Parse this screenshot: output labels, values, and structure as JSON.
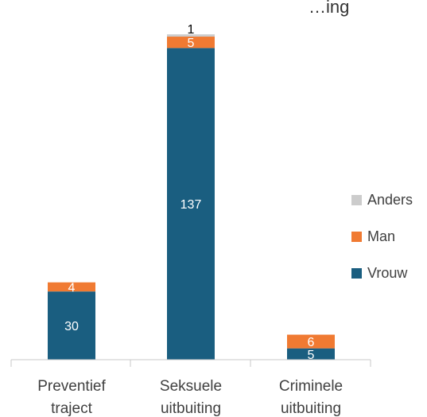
{
  "chart_data": {
    "type": "bar",
    "stacked": true,
    "title": "…ing",
    "categories": [
      [
        "Preventief",
        "traject"
      ],
      [
        "Seksuele",
        "uitbuiting"
      ],
      [
        "Criminele",
        "uitbuiting"
      ]
    ],
    "series": [
      {
        "name": "Vrouw",
        "color": "#1a5e80",
        "values": [
          30,
          137,
          5
        ]
      },
      {
        "name": "Man",
        "color": "#f07a32",
        "values": [
          4,
          5,
          6
        ]
      },
      {
        "name": "Anders",
        "color": "#cccccc",
        "values": [
          0,
          1,
          0
        ]
      }
    ],
    "legend_placement": "right",
    "grid": false,
    "ylim": [
      0,
      143
    ]
  }
}
